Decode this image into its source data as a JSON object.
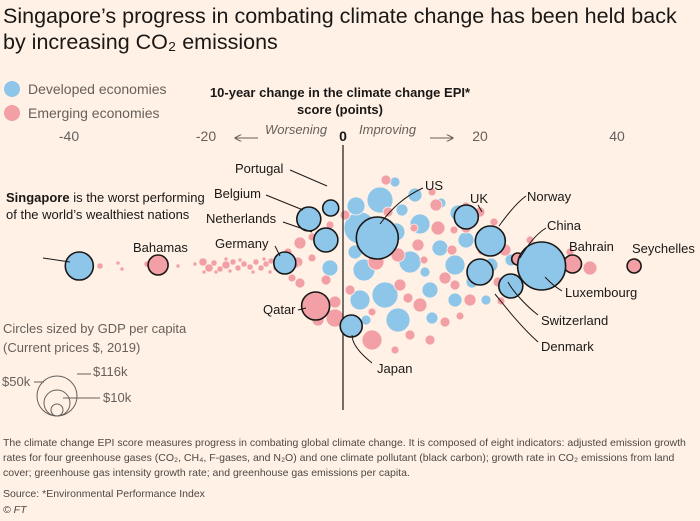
{
  "header": {
    "title": "Singapore’s progress in combating climate change has been held back by increasing CO₂ emissions"
  },
  "legend": [
    {
      "label": "Developed economies",
      "color": "#8ec6ea"
    },
    {
      "label": "Emerging economies",
      "color": "#f2a0a6"
    }
  ],
  "chart_data": {
    "type": "scatter",
    "title": "10-year change in the climate change EPI* score (points)",
    "xlim": [
      -44,
      47
    ],
    "x_ticks": [
      "-40",
      "-20",
      "0",
      "20",
      "40"
    ],
    "direction_labels": {
      "left": "Worsening",
      "right": "Improving"
    },
    "series": [
      {
        "name": "Developed economies",
        "color": "#8ec6ea"
      },
      {
        "name": "Emerging economies",
        "color": "#f2a0a6"
      }
    ],
    "size_legend": {
      "title": "Circles sized by GDP per capita (Current prices $, 2019)",
      "values": [
        "$116k",
        "$50k",
        "$10k"
      ]
    },
    "highlighted": [
      {
        "name": "Singapore",
        "x": -38.5,
        "group": "developed"
      },
      {
        "name": "Bahamas",
        "x": -27.0,
        "group": "emerging"
      },
      {
        "name": "Qatar",
        "x": -4.0,
        "group": "emerging"
      },
      {
        "name": "Portugal",
        "x": -1.8,
        "group": "developed"
      },
      {
        "name": "Belgium",
        "x": -5.0,
        "group": "developed"
      },
      {
        "name": "Netherlands",
        "x": -2.5,
        "group": "developed"
      },
      {
        "name": "Germany",
        "x": -8.5,
        "group": "developed"
      },
      {
        "name": "US",
        "x": 5.0,
        "group": "developed"
      },
      {
        "name": "Japan",
        "x": 1.2,
        "group": "developed"
      },
      {
        "name": "UK",
        "x": 18.0,
        "group": "developed"
      },
      {
        "name": "Norway",
        "x": 21.5,
        "group": "developed"
      },
      {
        "name": "China",
        "x": 25.5,
        "group": "emerging"
      },
      {
        "name": "Bahrain",
        "x": 33.5,
        "group": "emerging"
      },
      {
        "name": "Seychelles",
        "x": 42.5,
        "group": "emerging"
      },
      {
        "name": "Luxembourg",
        "x": 29.0,
        "group": "developed"
      },
      {
        "name": "Switzerland",
        "x": 20.0,
        "group": "developed"
      },
      {
        "name": "Denmark",
        "x": 24.5,
        "group": "developed"
      }
    ]
  },
  "annotation": {
    "bold": "Singapore",
    "text": " is the worst performing of the world’s wealthiest nations"
  },
  "footer": {
    "note": "The climate change EPI score measures progress in combating global climate change. It is composed of eight indicators: adjusted emission growth rates for four greenhouse gases (CO₂, CH₄, F-gases, and N₂O)  and one climate pollutant (black carbon); growth rate in CO₂ emissions from land cover; greenhouse gas intensity growth rate; and greenhouse gas emissions per capita.",
    "source": "Source: *Environmental Performance Index",
    "credit": "© FT"
  }
}
